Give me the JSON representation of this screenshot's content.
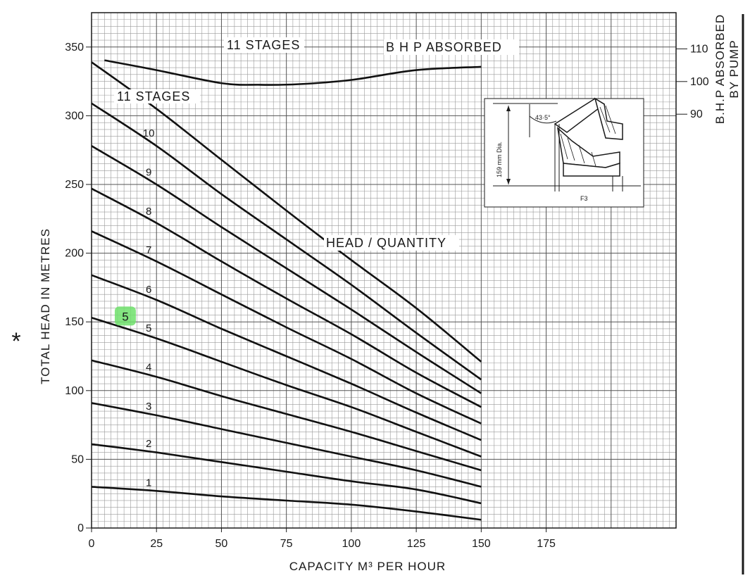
{
  "chart_data": {
    "type": "line",
    "title": "",
    "xlabel": "CAPACITY M³ PER HOUR",
    "ylabel": "TOTAL HEAD IN METRES",
    "y2label": [
      "B.H.P ABSORBED",
      "BY PUMP"
    ],
    "xlim": [
      0,
      225
    ],
    "ylim": [
      0,
      375
    ],
    "y2lim": [
      80,
      110
    ],
    "x_ticks": [
      "0",
      "25",
      "50",
      "75",
      "100",
      "125",
      "150",
      "175"
    ],
    "y_ticks": [
      "0",
      "50",
      "100",
      "150",
      "200",
      "250",
      "300",
      "350"
    ],
    "y2_ticks": [
      "90",
      "100",
      "110"
    ],
    "grid": true,
    "marker_symbol": "*",
    "annotations": {
      "bhp_label": "B H P  ABSORBED",
      "head_quantity_label": "HEAD / QUANTITY",
      "stages_top_label": "11 STAGES",
      "stages_head_label": "11 STAGES"
    },
    "inset": {
      "angle_label": "43·5°",
      "dia_label": "159 mm Dia.",
      "code_label": "F3"
    },
    "highlight_label": "5",
    "x": [
      0,
      25,
      50,
      75,
      100,
      125,
      150
    ],
    "series": [
      {
        "name": "1",
        "values": [
          30,
          27,
          23,
          20,
          17,
          12,
          6
        ]
      },
      {
        "name": "2",
        "values": [
          61,
          55,
          48,
          41,
          34,
          28,
          18
        ]
      },
      {
        "name": "3",
        "values": [
          91,
          82,
          72,
          62,
          52,
          42,
          30
        ]
      },
      {
        "name": "4",
        "values": [
          122,
          110,
          96,
          83,
          70,
          56,
          42
        ]
      },
      {
        "name": "5",
        "values": [
          153,
          138,
          121,
          104,
          88,
          70,
          52
        ]
      },
      {
        "name": "6",
        "values": [
          184,
          166,
          145,
          125,
          105,
          84,
          64
        ]
      },
      {
        "name": "7",
        "values": [
          216,
          194,
          170,
          146,
          123,
          98,
          76
        ]
      },
      {
        "name": "8",
        "values": [
          247,
          222,
          194,
          167,
          141,
          113,
          88
        ]
      },
      {
        "name": "9",
        "values": [
          278,
          250,
          219,
          189,
          159,
          128,
          98
        ]
      },
      {
        "name": "10",
        "values": [
          309,
          278,
          243,
          210,
          177,
          142,
          108
        ]
      },
      {
        "name": "11 STAGES",
        "values": [
          339,
          305,
          268,
          231,
          195,
          160,
          121
        ]
      }
    ],
    "bhp_series": {
      "name": "11 STAGES",
      "x": [
        5,
        25,
        50,
        65,
        80,
        100,
        125,
        150
      ],
      "values": [
        106.5,
        103.5,
        99.5,
        99,
        99.2,
        100.5,
        103.5,
        104.5
      ]
    }
  }
}
